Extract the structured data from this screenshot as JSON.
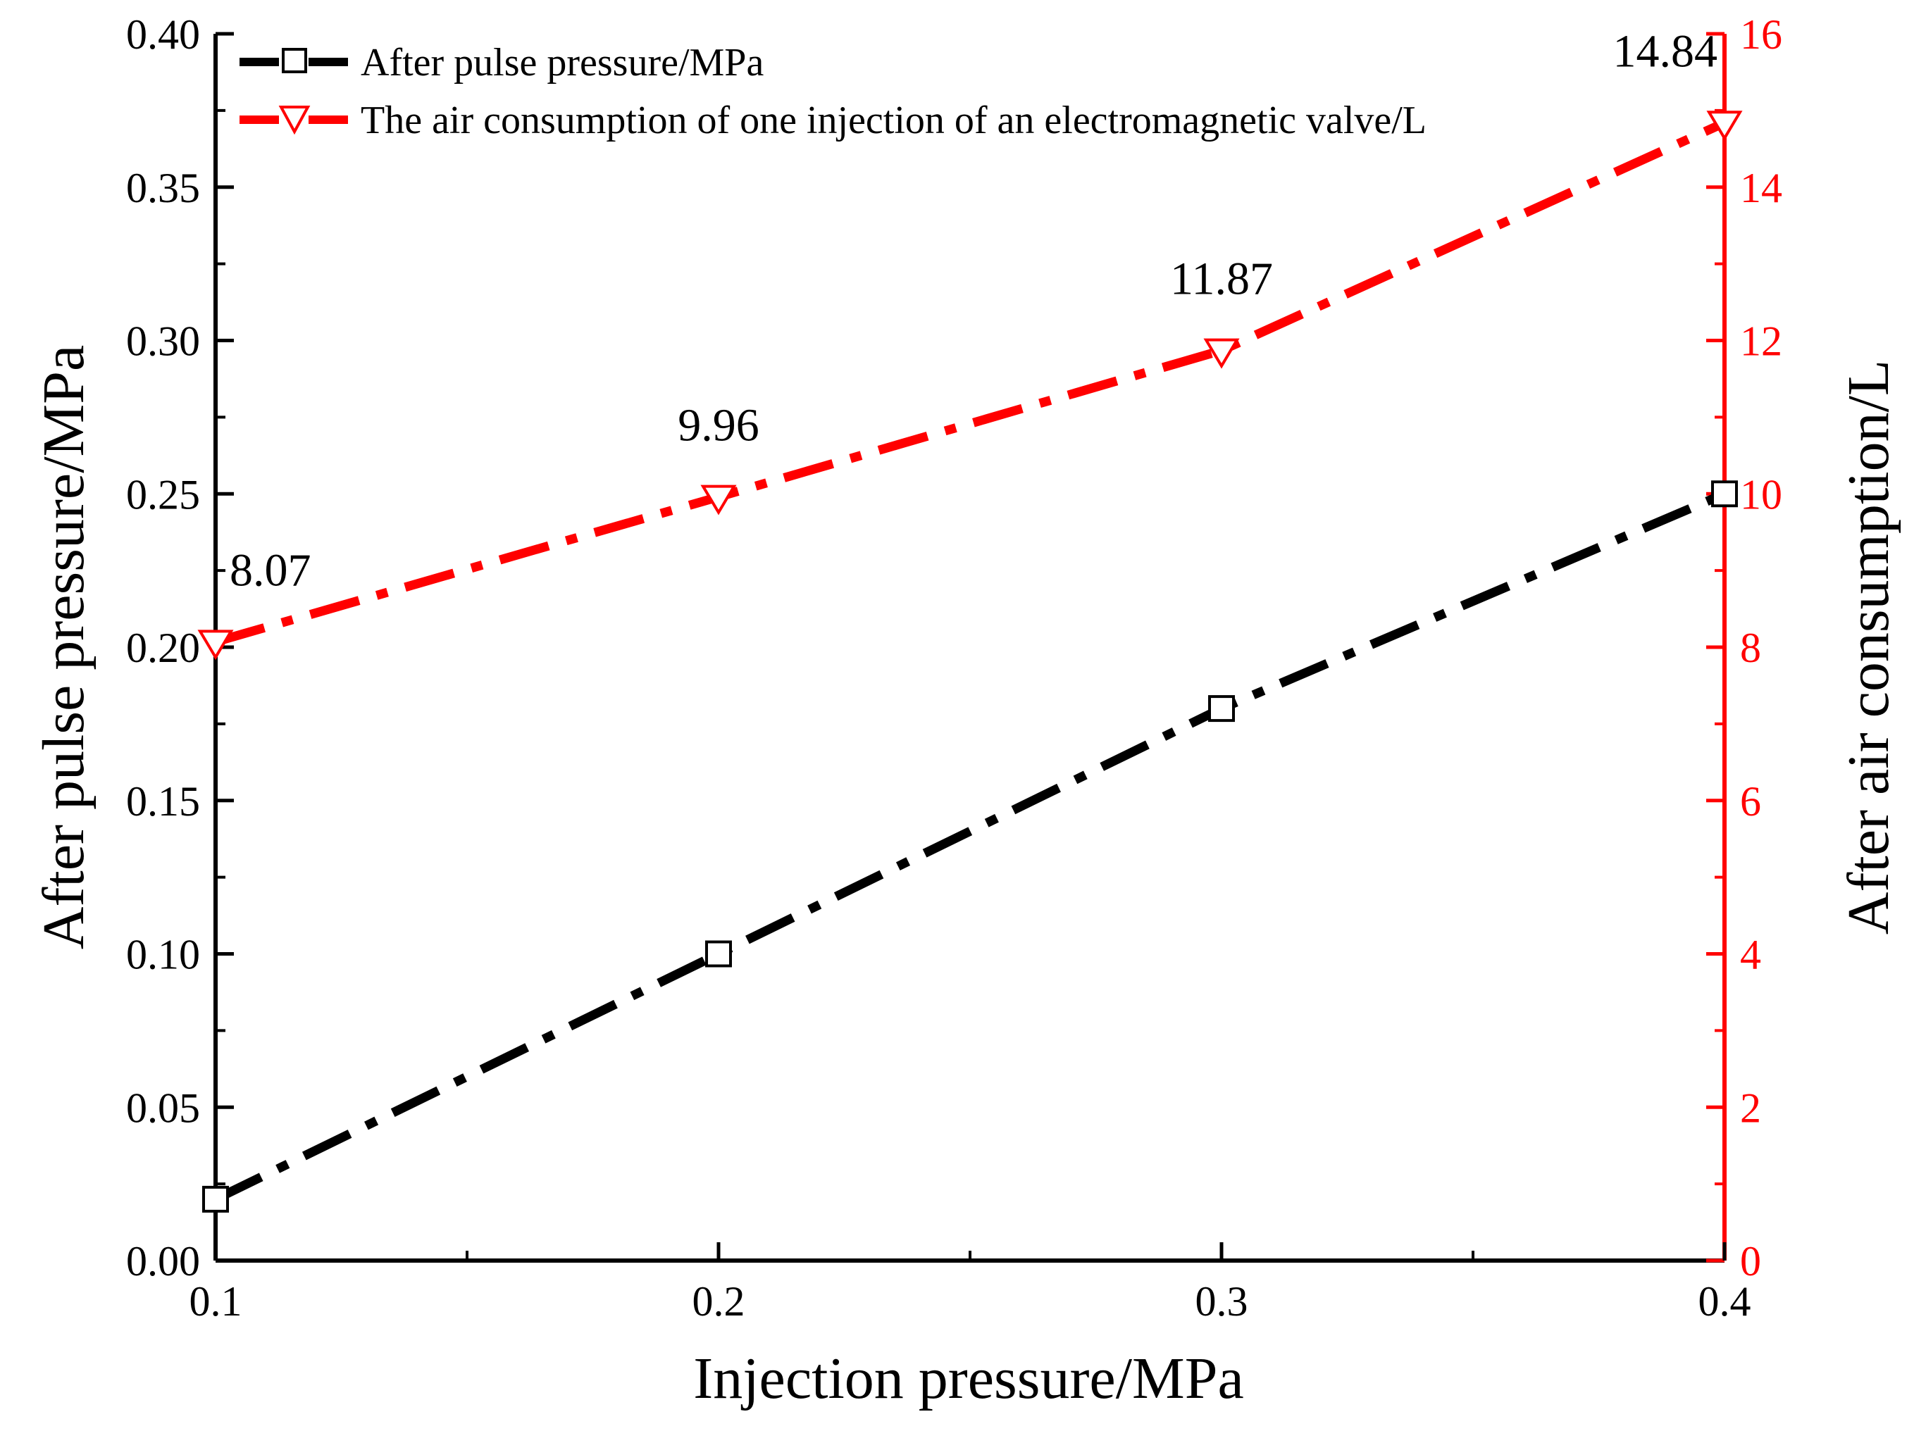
{
  "chart_data": {
    "type": "line",
    "x": [
      0.1,
      0.2,
      0.3,
      0.4
    ],
    "xlabel": "Injection pressure/MPa",
    "xlim": [
      0.1,
      0.4
    ],
    "xticks": [
      0.1,
      0.2,
      0.3,
      0.4
    ],
    "xtick_labels": [
      "0.1",
      "0.2",
      "0.3",
      "0.4"
    ],
    "left_axis": {
      "label": "After pulse pressure/MPa",
      "ylim": [
        0,
        0.4
      ],
      "ticks": [
        0,
        0.05,
        0.1,
        0.15,
        0.2,
        0.25,
        0.3,
        0.35,
        0.4
      ],
      "tick_labels": [
        "0.00",
        "0.05",
        "0.10",
        "0.15",
        "0.20",
        "0.25",
        "0.30",
        "0.35",
        "0.40"
      ],
      "color": "#000000"
    },
    "right_axis": {
      "label": "After  air consumption/L",
      "ylim": [
        0,
        16
      ],
      "ticks": [
        0,
        2,
        4,
        6,
        8,
        10,
        12,
        14,
        16
      ],
      "tick_labels": [
        "0",
        "2",
        "4",
        "6",
        "8",
        "10",
        "12",
        "14",
        "16"
      ],
      "color": "#ff0000"
    },
    "series": [
      {
        "name": "After pulse pressure/MPa",
        "axis": "left",
        "values": [
          0.02,
          0.1,
          0.18,
          0.25
        ],
        "color": "#000000",
        "marker": "square-open",
        "line_style": "dash-dot"
      },
      {
        "name": "The air consumption of one injection of an electromagnetic valve/L",
        "axis": "right",
        "values": [
          8.07,
          9.96,
          11.87,
          14.84
        ],
        "data_labels": [
          "8.07",
          "9.96",
          "11.87",
          "14.84"
        ],
        "color": "#ff0000",
        "marker": "triangle-down-open",
        "line_style": "dash-dot"
      }
    ],
    "legend": {
      "position": "top-left"
    },
    "grid": false
  }
}
